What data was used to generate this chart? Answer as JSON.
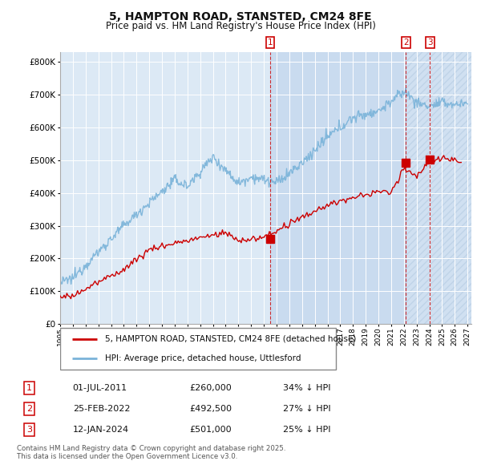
{
  "title": "5, HAMPTON ROAD, STANSTED, CM24 8FE",
  "subtitle": "Price paid vs. HM Land Registry's House Price Index (HPI)",
  "background_color": "#ffffff",
  "plot_bg_color": "#dce9f5",
  "plot_bg_color_shaded": "#c8ddf0",
  "grid_color": "#ffffff",
  "hpi_color": "#7ab3d9",
  "price_color": "#cc0000",
  "yticks": [
    0,
    100000,
    200000,
    300000,
    400000,
    500000,
    600000,
    700000,
    800000
  ],
  "ytick_labels": [
    "£0",
    "£100K",
    "£200K",
    "£300K",
    "£400K",
    "£500K",
    "£600K",
    "£700K",
    "£800K"
  ],
  "ylim": [
    0,
    830000
  ],
  "xlim_start": 1995.3,
  "xlim_end": 2027.3,
  "transactions": [
    {
      "date": 2011.5,
      "price": 260000,
      "label": "1"
    },
    {
      "date": 2022.15,
      "price": 492500,
      "label": "2"
    },
    {
      "date": 2024.04,
      "price": 501000,
      "label": "3"
    }
  ],
  "legend_entries": [
    "5, HAMPTON ROAD, STANSTED, CM24 8FE (detached house)",
    "HPI: Average price, detached house, Uttlesford"
  ],
  "table_rows": [
    [
      "1",
      "01-JUL-2011",
      "£260,000",
      "34% ↓ HPI"
    ],
    [
      "2",
      "25-FEB-2022",
      "£492,500",
      "27% ↓ HPI"
    ],
    [
      "3",
      "12-JAN-2024",
      "£501,000",
      "25% ↓ HPI"
    ]
  ],
  "footer": "Contains HM Land Registry data © Crown copyright and database right 2025.\nThis data is licensed under the Open Government Licence v3.0."
}
